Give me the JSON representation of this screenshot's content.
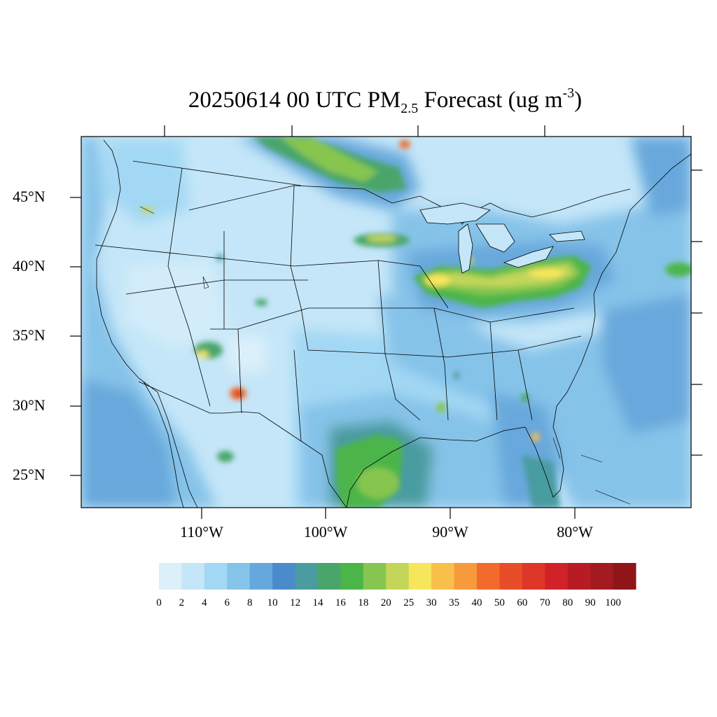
{
  "map": {
    "title_main": "20250614 00 UTC PM",
    "title_sub": "2.5",
    "title_rest": " Forecast (ug m",
    "title_sup": "-3",
    "title_end": ")",
    "variable": "PM2.5 Forecast",
    "units": "ug m-3",
    "region": "Contiguous United States",
    "lat_labels": [
      "45°N",
      "40°N",
      "35°N",
      "30°N",
      "25°N"
    ],
    "lon_labels": [
      "110°W",
      "100°W",
      "90°W",
      "80°W"
    ],
    "colorbar": {
      "colors": [
        "#dcf0fa",
        "#c4e6f8",
        "#a3d8f4",
        "#86c3e9",
        "#67a8dc",
        "#4a8bcc",
        "#4a9ca0",
        "#4aa56a",
        "#4cb548",
        "#86c650",
        "#c3d65a",
        "#f6e65c",
        "#f8c04a",
        "#f69a3c",
        "#f26b2c",
        "#e84d2a",
        "#de3628",
        "#d12228",
        "#b71c24",
        "#a41a21",
        "#8f1519"
      ],
      "labels": [
        "0",
        "2",
        "4",
        "6",
        "8",
        "10",
        "12",
        "14",
        "16",
        "18",
        "20",
        "25",
        "30",
        "35",
        "40",
        "50",
        "60",
        "70",
        "80",
        "90",
        "100"
      ]
    }
  }
}
